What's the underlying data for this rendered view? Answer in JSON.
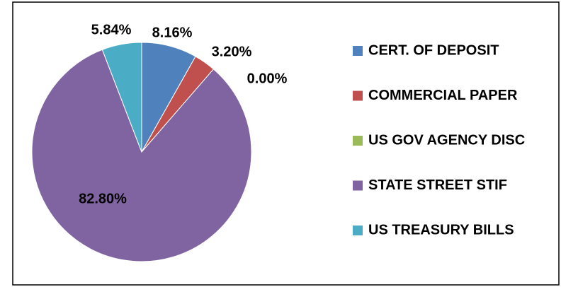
{
  "chart_data": {
    "type": "pie",
    "categories": [
      "CERT. OF DEPOSIT",
      "COMMERCIAL PAPER",
      "US GOV AGENCY DISC",
      "STATE STREET STIF",
      "US TREASURY BILLS"
    ],
    "values": [
      8.16,
      3.2,
      0.0,
      82.8,
      5.84
    ],
    "value_labels": [
      "8.16%",
      "3.20%",
      "0.00%",
      "82.80%",
      "5.84%"
    ],
    "colors": [
      "#4f81bd",
      "#c0504d",
      "#9bbb59",
      "#8064a2",
      "#4bacc6"
    ],
    "legend": "right"
  }
}
